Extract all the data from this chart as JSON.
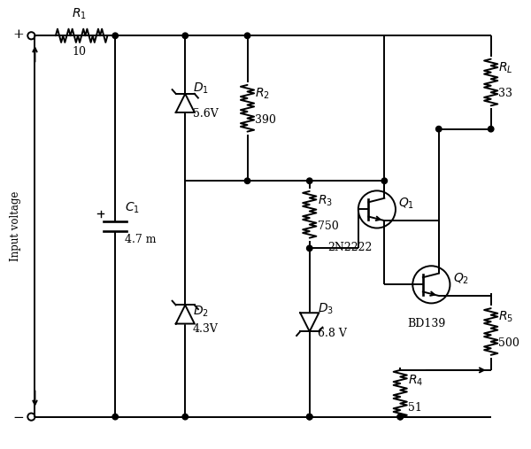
{
  "bg_color": "#ffffff",
  "line_color": "#000000",
  "lw": 1.4,
  "components": {
    "R1": {
      "label": "R_1",
      "value": "10"
    },
    "R2": {
      "label": "R_2",
      "value": "390"
    },
    "R3": {
      "label": "R_3",
      "value": "750"
    },
    "R4": {
      "label": "R_4",
      "value": "51"
    },
    "R5": {
      "label": "R_5",
      "value": "500"
    },
    "RL": {
      "label": "R_L",
      "value": "33"
    },
    "C1": {
      "label": "C_1",
      "value": "4.7 m"
    },
    "D1": {
      "label": "D_1",
      "value": "5.6V"
    },
    "D2": {
      "label": "D_2",
      "value": "4.3V"
    },
    "D3": {
      "label": "D_3",
      "value": "6.8 V"
    },
    "Q1": {
      "label": "Q_1",
      "name": "2N2222"
    },
    "Q2": {
      "label": "Q_2",
      "name": "BD139"
    }
  },
  "xlim": [
    0,
    10
  ],
  "ylim": [
    0,
    8.45
  ],
  "figsize": [
    6.0,
    5.07
  ],
  "dpi": 100
}
